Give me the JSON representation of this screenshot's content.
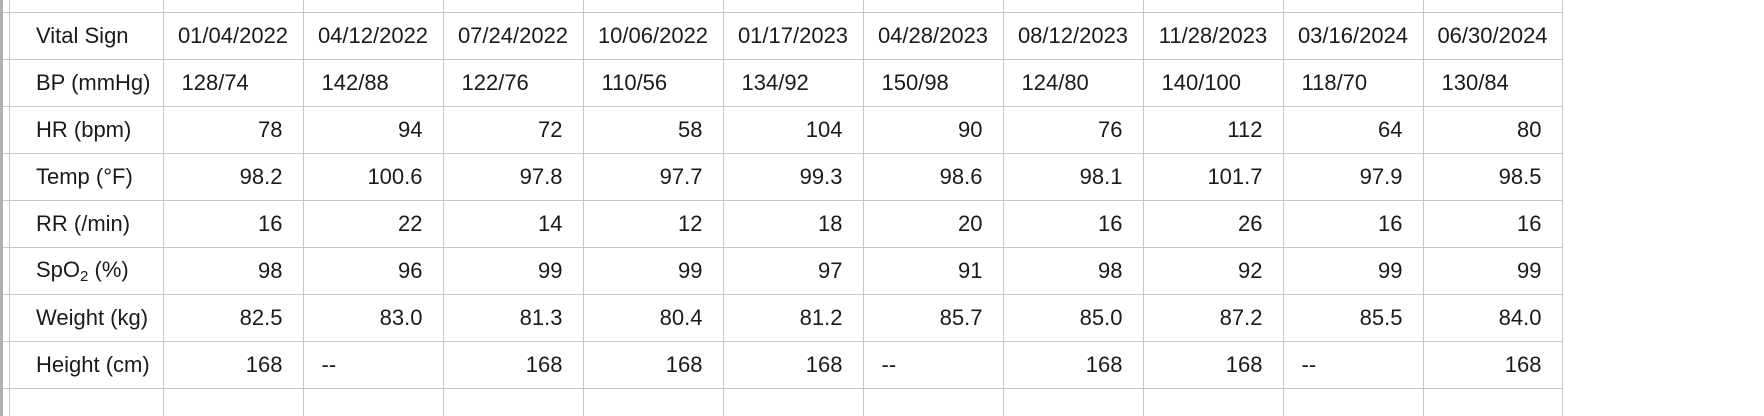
{
  "table": {
    "header": {
      "label": "Vital Sign",
      "dates": [
        "01/04/2022",
        "04/12/2022",
        "07/24/2022",
        "10/06/2022",
        "01/17/2023",
        "04/28/2023",
        "08/12/2023",
        "11/28/2023",
        "03/16/2024",
        "06/30/2024"
      ]
    },
    "rows": [
      {
        "label": "BP (mmHg)",
        "align": "left",
        "values": [
          "128/74",
          "142/88",
          "122/76",
          "110/56",
          "134/92",
          "150/98",
          "124/80",
          "140/100",
          "118/70",
          "130/84"
        ]
      },
      {
        "label": "HR (bpm)",
        "align": "right",
        "values": [
          "78",
          "94",
          "72",
          "58",
          "104",
          "90",
          "76",
          "112",
          "64",
          "80"
        ]
      },
      {
        "label": "Temp (°F)",
        "align": "right",
        "values": [
          "98.2",
          "100.6",
          "97.8",
          "97.7",
          "99.3",
          "98.6",
          "98.1",
          "101.7",
          "97.9",
          "98.5"
        ]
      },
      {
        "label": "RR (/min)",
        "align": "right",
        "values": [
          "16",
          "22",
          "14",
          "12",
          "18",
          "20",
          "16",
          "26",
          "16",
          "16"
        ]
      },
      {
        "label_main": "SpO",
        "label_sub": "2",
        "label_tail": " (%)",
        "align": "right",
        "values": [
          "98",
          "96",
          "99",
          "99",
          "97",
          "91",
          "98",
          "92",
          "99",
          "99"
        ]
      },
      {
        "label": "Weight (kg)",
        "align": "right",
        "values": [
          "82.5",
          "83.0",
          "81.3",
          "80.4",
          "81.2",
          "85.7",
          "85.0",
          "87.2",
          "85.5",
          "84.0"
        ]
      },
      {
        "label": "Height (cm)",
        "align": "mixed",
        "values": [
          "168",
          "--",
          "168",
          "168",
          "168",
          "--",
          "168",
          "168",
          "--",
          "168"
        ]
      }
    ]
  }
}
